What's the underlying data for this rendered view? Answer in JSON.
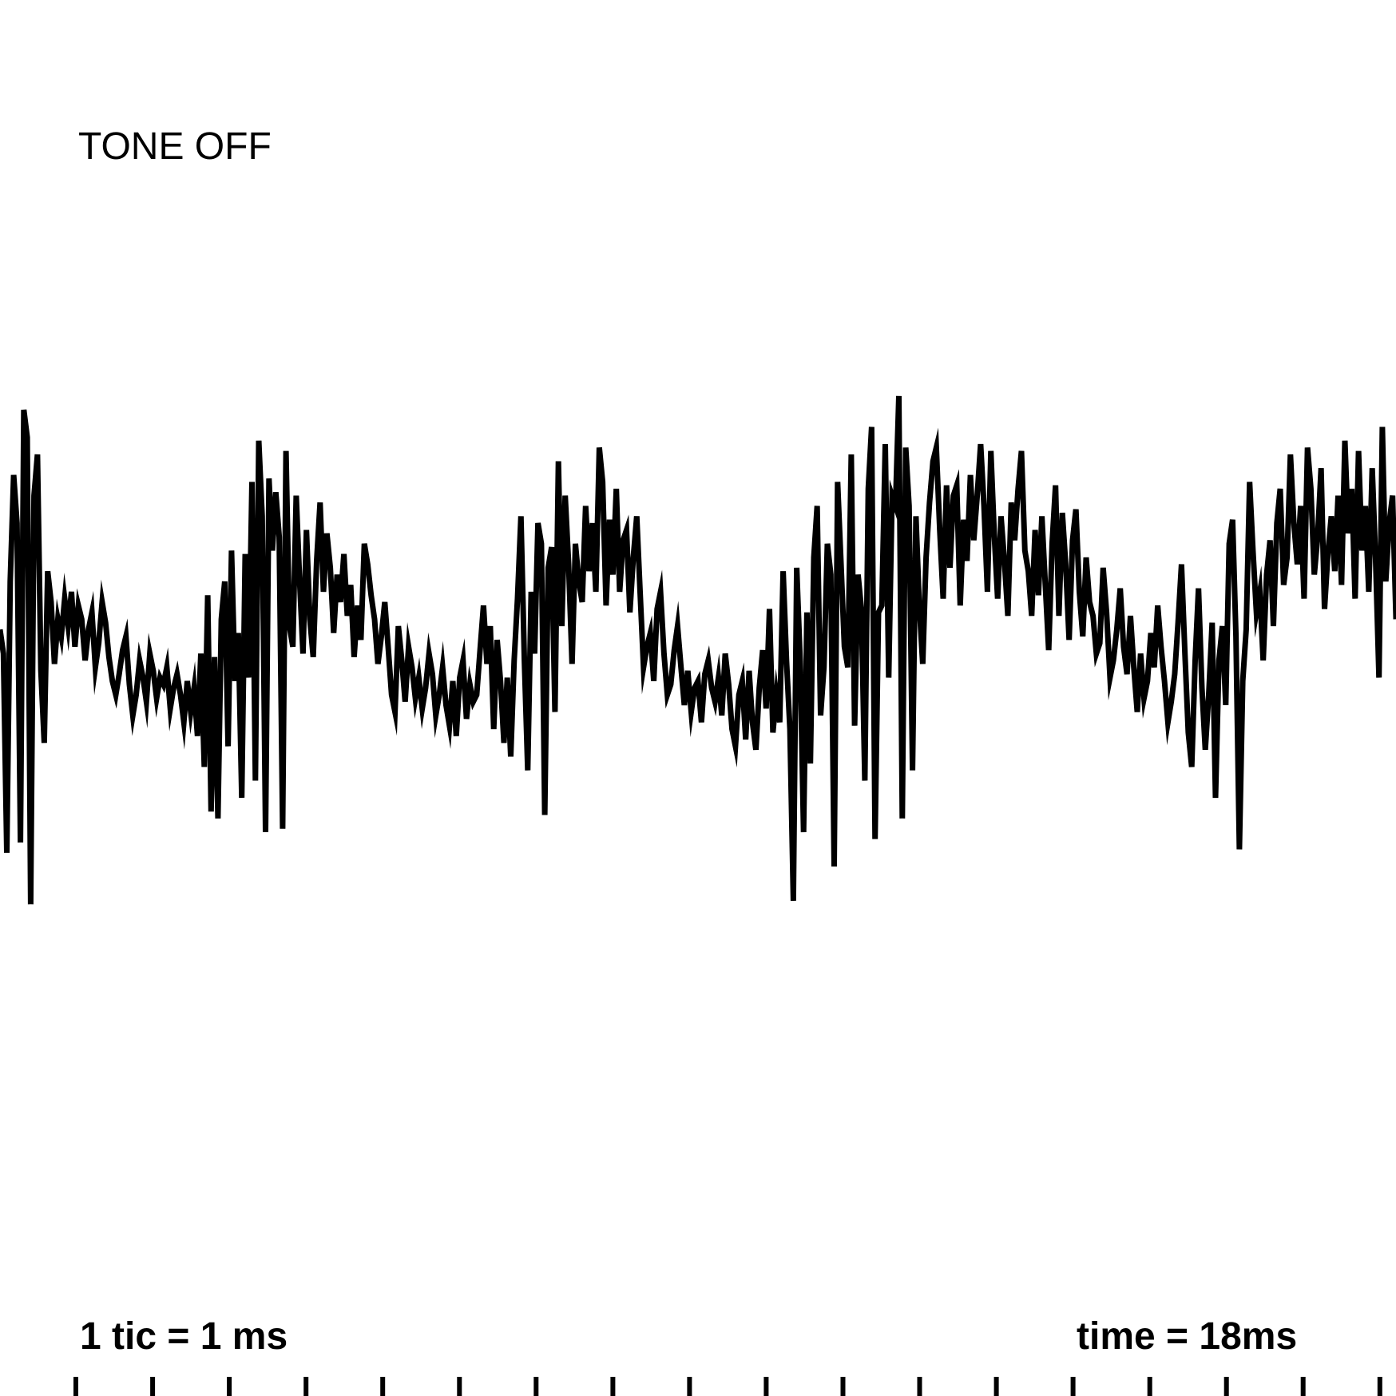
{
  "annotations": {
    "status": "TONE OFF",
    "scale": "1 tic = 1 ms",
    "time": "time = 18ms"
  },
  "colors": {
    "trace": "#000000",
    "background": "#ffffff"
  },
  "chart_data": {
    "type": "line",
    "title": "",
    "xlabel": "",
    "ylabel": "",
    "x_unit": "ms",
    "xlim": [
      0,
      18.2
    ],
    "ylim": [
      -1,
      1
    ],
    "tick_interval": 1,
    "grid": false,
    "legend": "none",
    "series": [
      {
        "y": [
          0.19,
          0.12,
          -0.46,
          0.33,
          0.64,
          0.5,
          -0.43,
          0.83,
          0.75,
          -0.61,
          0.58,
          0.7,
          0.07,
          -0.14,
          0.36,
          0.27,
          0.09,
          0.22,
          0.17,
          0.28,
          0.2,
          0.3,
          0.14,
          0.26,
          0.22,
          0.1,
          0.19,
          0.24,
          0.08,
          0.15,
          0.27,
          0.21,
          0.11,
          0.04,
          0.0,
          0.06,
          0.13,
          0.17,
          0.03,
          -0.06,
          0.0,
          0.1,
          0.05,
          -0.02,
          0.12,
          0.07,
          -0.01,
          0.05,
          0.03,
          0.08,
          -0.04,
          0.02,
          0.06,
          0.0,
          -0.08,
          0.04,
          -0.05,
          0.02,
          -0.12,
          0.12,
          -0.21,
          0.29,
          -0.34,
          0.11,
          -0.36,
          0.22,
          0.33,
          -0.15,
          0.42,
          0.04,
          0.18,
          -0.3,
          0.41,
          0.05,
          0.62,
          -0.25,
          0.74,
          0.52,
          -0.4,
          0.63,
          0.42,
          0.59,
          0.46,
          -0.39,
          0.71,
          0.2,
          0.14,
          0.58,
          0.33,
          0.12,
          0.48,
          0.22,
          0.11,
          0.39,
          0.56,
          0.3,
          0.47,
          0.37,
          0.18,
          0.35,
          0.27,
          0.41,
          0.23,
          0.32,
          0.11,
          0.26,
          0.16,
          0.44,
          0.38,
          0.29,
          0.22,
          0.09,
          0.17,
          0.27,
          0.14,
          0.0,
          -0.05,
          0.2,
          0.1,
          -0.02,
          0.14,
          0.08,
          -0.01,
          0.05,
          -0.04,
          0.02,
          0.12,
          0.06,
          -0.06,
          0.0,
          0.08,
          -0.03,
          -0.09,
          0.04,
          -0.12,
          0.05,
          0.1,
          -0.07,
          0.03,
          -0.02,
          0.0,
          0.13,
          0.26,
          0.09,
          0.2,
          -0.1,
          0.16,
          0.04,
          -0.14,
          0.05,
          -0.18,
          0.1,
          0.28,
          0.52,
          0.1,
          -0.22,
          0.3,
          0.12,
          0.5,
          0.44,
          -0.35,
          0.37,
          0.43,
          -0.05,
          0.68,
          0.2,
          0.58,
          0.38,
          0.09,
          0.44,
          0.33,
          0.27,
          0.55,
          0.36,
          0.5,
          0.3,
          0.72,
          0.62,
          0.26,
          0.51,
          0.35,
          0.6,
          0.3,
          0.45,
          0.48,
          0.24,
          0.4,
          0.52,
          0.3,
          0.08,
          0.14,
          0.18,
          0.04,
          0.25,
          0.3,
          0.12,
          0.0,
          0.03,
          0.13,
          0.2,
          0.08,
          -0.03,
          0.07,
          -0.05,
          0.02,
          0.04,
          -0.08,
          0.06,
          0.1,
          0.02,
          -0.02,
          0.05,
          -0.06,
          0.12,
          0.03,
          -0.1,
          -0.15,
          0.0,
          0.04,
          -0.13,
          0.07,
          -0.08,
          -0.16,
          0.02,
          0.13,
          -0.04,
          0.25,
          -0.11,
          0.0,
          -0.08,
          0.36,
          0.1,
          -0.1,
          -0.6,
          0.37,
          0.1,
          -0.4,
          0.24,
          -0.2,
          0.4,
          0.55,
          -0.06,
          0.08,
          0.44,
          0.35,
          -0.5,
          0.62,
          0.38,
          0.14,
          0.08,
          0.7,
          -0.09,
          0.35,
          0.25,
          -0.25,
          0.6,
          0.78,
          -0.42,
          0.24,
          0.26,
          0.73,
          0.05,
          0.58,
          0.55,
          0.87,
          -0.36,
          0.72,
          0.55,
          -0.22,
          0.52,
          0.26,
          0.09,
          0.4,
          0.56,
          0.68,
          0.72,
          0.48,
          0.28,
          0.61,
          0.37,
          0.58,
          0.61,
          0.26,
          0.51,
          0.39,
          0.64,
          0.45,
          0.58,
          0.73,
          0.55,
          0.3,
          0.71,
          0.47,
          0.28,
          0.52,
          0.39,
          0.23,
          0.56,
          0.45,
          0.6,
          0.71,
          0.42,
          0.36,
          0.23,
          0.48,
          0.29,
          0.52,
          0.32,
          0.13,
          0.44,
          0.61,
          0.23,
          0.53,
          0.38,
          0.16,
          0.45,
          0.54,
          0.3,
          0.17,
          0.4,
          0.27,
          0.23,
          0.12,
          0.15,
          0.37,
          0.24,
          0.05,
          0.1,
          0.19,
          0.31,
          0.14,
          0.06,
          0.23,
          0.08,
          -0.05,
          0.12,
          -0.01,
          0.04,
          0.18,
          0.08,
          0.26,
          0.14,
          0.04,
          -0.08,
          -0.02,
          0.06,
          0.21,
          0.38,
          0.12,
          -0.11,
          -0.21,
          0.1,
          0.31,
          0.02,
          -0.16,
          0.0,
          0.21,
          -0.3,
          0.1,
          0.2,
          -0.03,
          0.44,
          0.51,
          0.17,
          -0.45,
          0.04,
          0.19,
          0.62,
          0.42,
          0.24,
          0.3,
          0.1,
          0.35,
          0.45,
          0.2,
          0.5,
          0.6,
          0.32,
          0.4,
          0.7,
          0.5,
          0.38,
          0.55,
          0.28,
          0.72,
          0.6,
          0.35,
          0.46,
          0.66,
          0.25,
          0.41,
          0.52,
          0.36,
          0.58,
          0.32,
          0.74,
          0.47,
          0.6,
          0.28,
          0.71,
          0.42,
          0.55,
          0.3,
          0.66,
          0.4,
          0.05,
          0.78,
          0.33,
          0.5,
          0.58,
          0.22
        ]
      }
    ]
  }
}
